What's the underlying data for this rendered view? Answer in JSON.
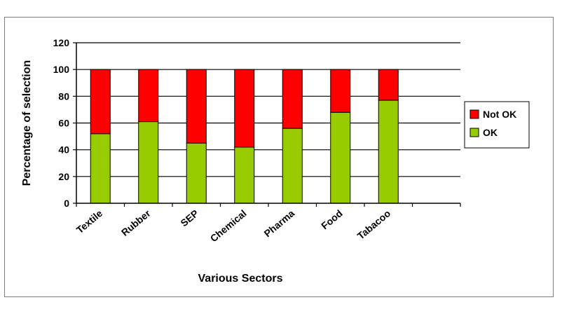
{
  "chart_data": {
    "type": "bar",
    "stacked": true,
    "categories": [
      "Textile",
      "Rubber",
      "SEP",
      "Chemical",
      "Pharma",
      "Food",
      "Tabacoo"
    ],
    "series": [
      {
        "name": "OK",
        "color": "#99cc00",
        "values": [
          52,
          61,
          45,
          42,
          56,
          68,
          77
        ]
      },
      {
        "name": "Not OK",
        "color": "#ff0000",
        "values": [
          48,
          39,
          55,
          58,
          44,
          32,
          23
        ]
      }
    ],
    "xlabel": "Various Sectors",
    "ylabel": "Percentage of selection",
    "ylim": [
      0,
      120
    ],
    "yticks": [
      0,
      20,
      40,
      60,
      80,
      100,
      120
    ],
    "grid": true,
    "legend_position": "right",
    "legend_order": [
      "Not OK",
      "OK"
    ]
  }
}
